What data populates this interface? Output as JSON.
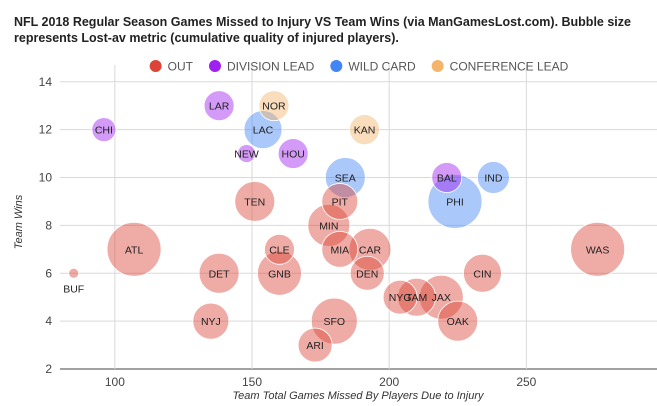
{
  "chart_data": {
    "type": "bubble",
    "title": "NFL 2018 Regular Season Games Missed to Injury VS Team Wins (via ManGamesLost.com). Bubble size represents Lost-av metric (cumulative quality of injured players).",
    "xlabel": "Team Total Games Missed By Players Due to Injury",
    "ylabel": "Team Wins",
    "xlim": [
      80,
      298
    ],
    "ylim": [
      2,
      14.7
    ],
    "xticks": [
      100,
      150,
      200,
      250
    ],
    "yticks": [
      2,
      4,
      6,
      8,
      10,
      12,
      14
    ],
    "legend": [
      {
        "name": "OUT",
        "color": "#db4437"
      },
      {
        "name": "DIVISION LEAD",
        "color": "#a020f0"
      },
      {
        "name": "WILD CARD",
        "color": "#4285f4"
      },
      {
        "name": "CONFERENCE LEAD",
        "color": "#f4b46b"
      }
    ],
    "points": [
      {
        "team": "CHI",
        "x": 96,
        "y": 12,
        "size": 12,
        "group": "DIVISION LEAD"
      },
      {
        "team": "LAR",
        "x": 138,
        "y": 13,
        "size": 15,
        "group": "DIVISION LEAD"
      },
      {
        "team": "NOR",
        "x": 158,
        "y": 13,
        "size": 15,
        "group": "CONFERENCE LEAD"
      },
      {
        "team": "LAC",
        "x": 154,
        "y": 12,
        "size": 19,
        "group": "WILD CARD"
      },
      {
        "team": "NEW",
        "x": 148,
        "y": 11,
        "size": 9,
        "group": "DIVISION LEAD"
      },
      {
        "team": "HOU",
        "x": 165,
        "y": 11,
        "size": 15,
        "group": "DIVISION LEAD"
      },
      {
        "team": "KAN",
        "x": 191,
        "y": 12,
        "size": 15,
        "group": "CONFERENCE LEAD"
      },
      {
        "team": "SEA",
        "x": 184,
        "y": 10,
        "size": 20,
        "group": "WILD CARD"
      },
      {
        "team": "BAL",
        "x": 221,
        "y": 10,
        "size": 15,
        "group": "DIVISION LEAD"
      },
      {
        "team": "IND",
        "x": 238,
        "y": 10,
        "size": 16,
        "group": "WILD CARD"
      },
      {
        "team": "PHI",
        "x": 224,
        "y": 9,
        "size": 27,
        "group": "WILD CARD"
      },
      {
        "team": "TEN",
        "x": 151,
        "y": 9,
        "size": 20,
        "group": "OUT"
      },
      {
        "team": "PIT",
        "x": 182,
        "y": 9,
        "size": 18,
        "group": "OUT"
      },
      {
        "team": "MIN",
        "x": 178,
        "y": 8,
        "size": 21,
        "group": "OUT"
      },
      {
        "team": "ATL",
        "x": 107,
        "y": 7,
        "size": 27,
        "group": "OUT"
      },
      {
        "team": "CLE",
        "x": 160,
        "y": 7,
        "size": 15,
        "group": "OUT"
      },
      {
        "team": "MIA",
        "x": 182,
        "y": 7,
        "size": 18,
        "group": "OUT"
      },
      {
        "team": "CAR",
        "x": 193,
        "y": 7,
        "size": 21,
        "group": "OUT"
      },
      {
        "team": "WAS",
        "x": 276,
        "y": 7,
        "size": 27,
        "group": "OUT"
      },
      {
        "team": "BUF",
        "x": 85,
        "y": 6,
        "size": 5,
        "group": "OUT"
      },
      {
        "team": "DET",
        "x": 138,
        "y": 6,
        "size": 20,
        "group": "OUT"
      },
      {
        "team": "GNB",
        "x": 160,
        "y": 6,
        "size": 22,
        "group": "OUT"
      },
      {
        "team": "DEN",
        "x": 192,
        "y": 6,
        "size": 17,
        "group": "OUT"
      },
      {
        "team": "CIN",
        "x": 234,
        "y": 6,
        "size": 19,
        "group": "OUT"
      },
      {
        "team": "NYJ",
        "x": 135,
        "y": 4,
        "size": 18,
        "group": "OUT"
      },
      {
        "team": "SFO",
        "x": 180,
        "y": 4,
        "size": 23,
        "group": "OUT"
      },
      {
        "team": "OAK",
        "x": 225,
        "y": 4,
        "size": 20,
        "group": "OUT"
      },
      {
        "team": "NYG",
        "x": 204,
        "y": 5,
        "size": 17,
        "group": "OUT"
      },
      {
        "team": "TAM",
        "x": 210,
        "y": 5,
        "size": 19,
        "group": "OUT"
      },
      {
        "team": "JAX",
        "x": 219,
        "y": 5,
        "size": 22,
        "group": "OUT"
      },
      {
        "team": "ARI",
        "x": 173,
        "y": 3,
        "size": 17,
        "group": "OUT"
      }
    ]
  }
}
